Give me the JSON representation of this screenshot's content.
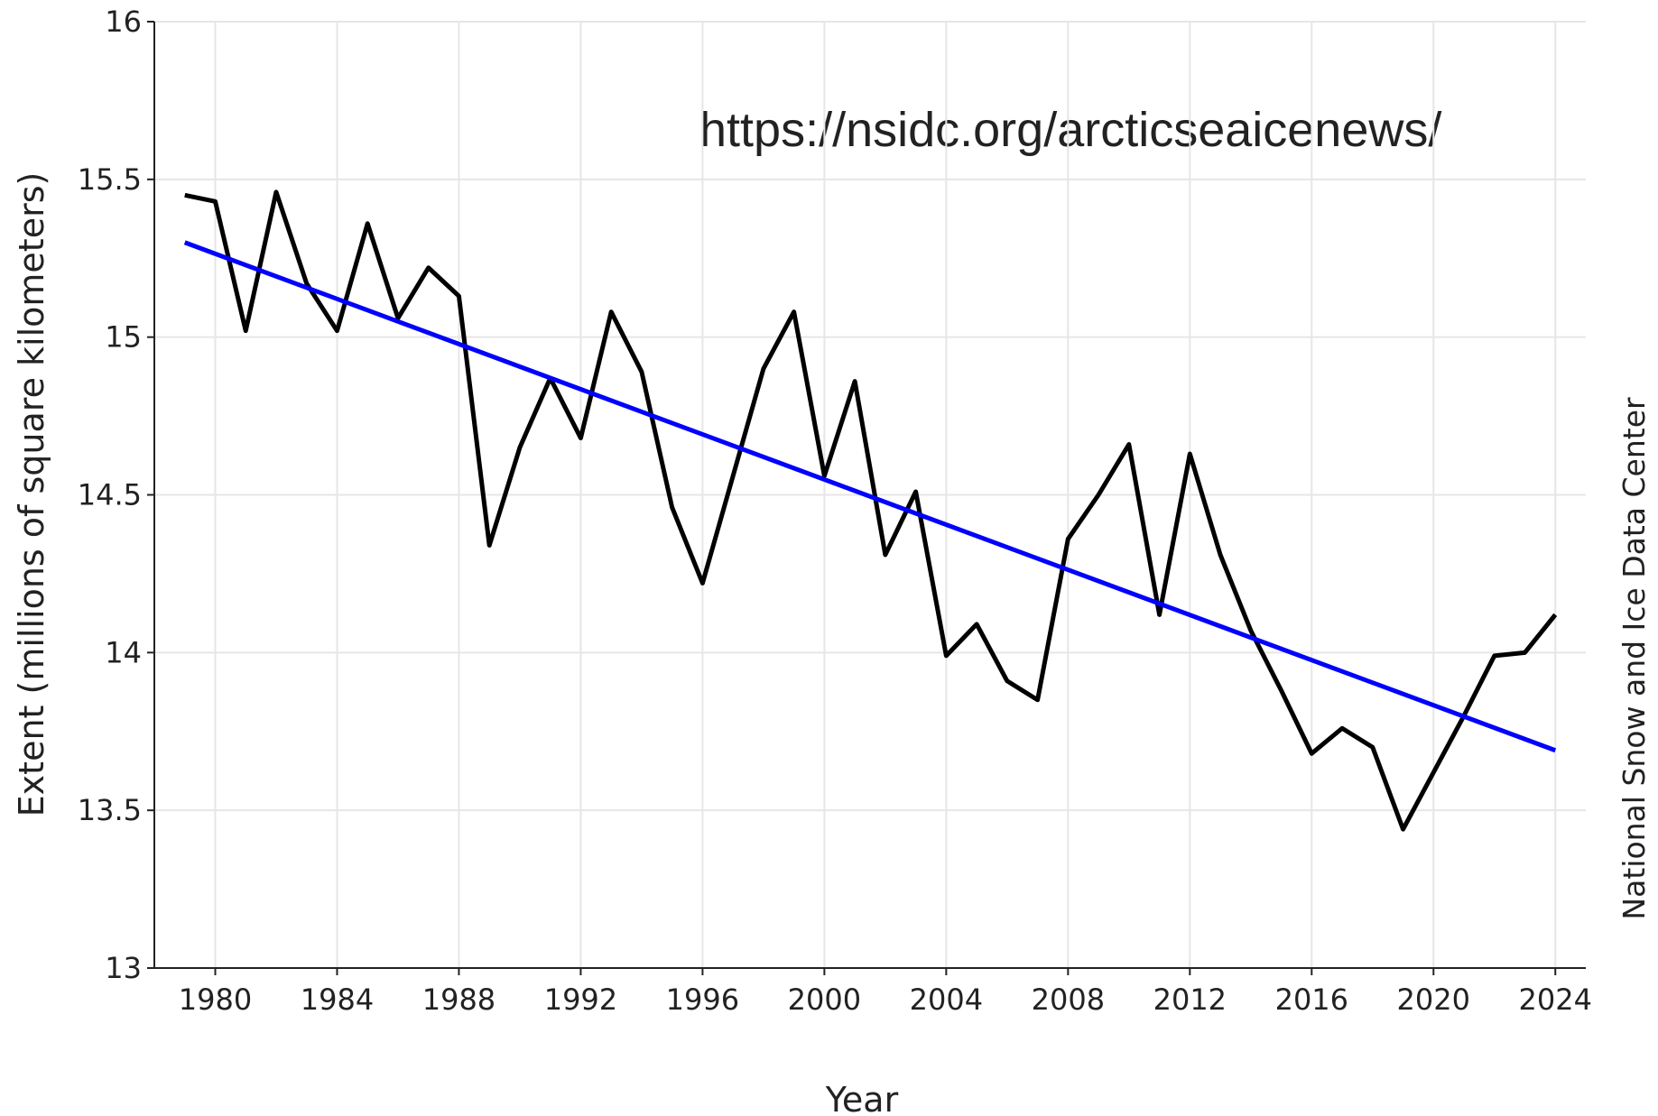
{
  "chart_data": {
    "type": "line",
    "x": [
      1979,
      1980,
      1981,
      1982,
      1983,
      1984,
      1985,
      1986,
      1987,
      1988,
      1989,
      1990,
      1991,
      1992,
      1993,
      1994,
      1995,
      1996,
      1997,
      1998,
      1999,
      2000,
      2001,
      2002,
      2003,
      2004,
      2005,
      2006,
      2007,
      2008,
      2009,
      2010,
      2011,
      2012,
      2013,
      2014,
      2015,
      2016,
      2017,
      2018,
      2019,
      2020,
      2021,
      2022,
      2023,
      2024
    ],
    "series": [
      {
        "color": "#000000",
        "values": [
          15.45,
          15.43,
          15.02,
          15.46,
          15.17,
          15.02,
          15.36,
          15.06,
          15.22,
          15.13,
          14.34,
          14.65,
          14.87,
          14.68,
          15.08,
          14.89,
          14.46,
          14.22,
          14.56,
          14.9,
          15.08,
          14.56,
          14.86,
          14.31,
          14.51,
          13.99,
          14.09,
          13.91,
          13.85,
          14.36,
          14.5,
          14.66,
          14.12,
          14.63,
          14.31,
          14.07,
          13.88,
          13.68,
          13.76,
          13.7,
          13.44,
          13.62,
          13.8,
          13.99,
          14.0,
          14.12
        ]
      }
    ],
    "trend_line": {
      "x": [
        1979,
        2024
      ],
      "values": [
        15.3,
        13.69
      ],
      "color": "#0000ff"
    },
    "xlabel": "Year",
    "ylabel": "Extent (millions of square kilometers)",
    "annotations": [
      "https://nsidc.org/arcticseaicenews/",
      "National Snow and Ice Data Center"
    ],
    "xlim": [
      1978,
      2025
    ],
    "ylim": [
      13,
      16
    ],
    "xticks": [
      1980,
      1984,
      1988,
      1992,
      1996,
      2000,
      2004,
      2008,
      2012,
      2016,
      2020,
      2024
    ],
    "yticks": [
      13,
      13.5,
      14,
      14.5,
      15,
      15.5,
      16
    ],
    "grid": true
  }
}
